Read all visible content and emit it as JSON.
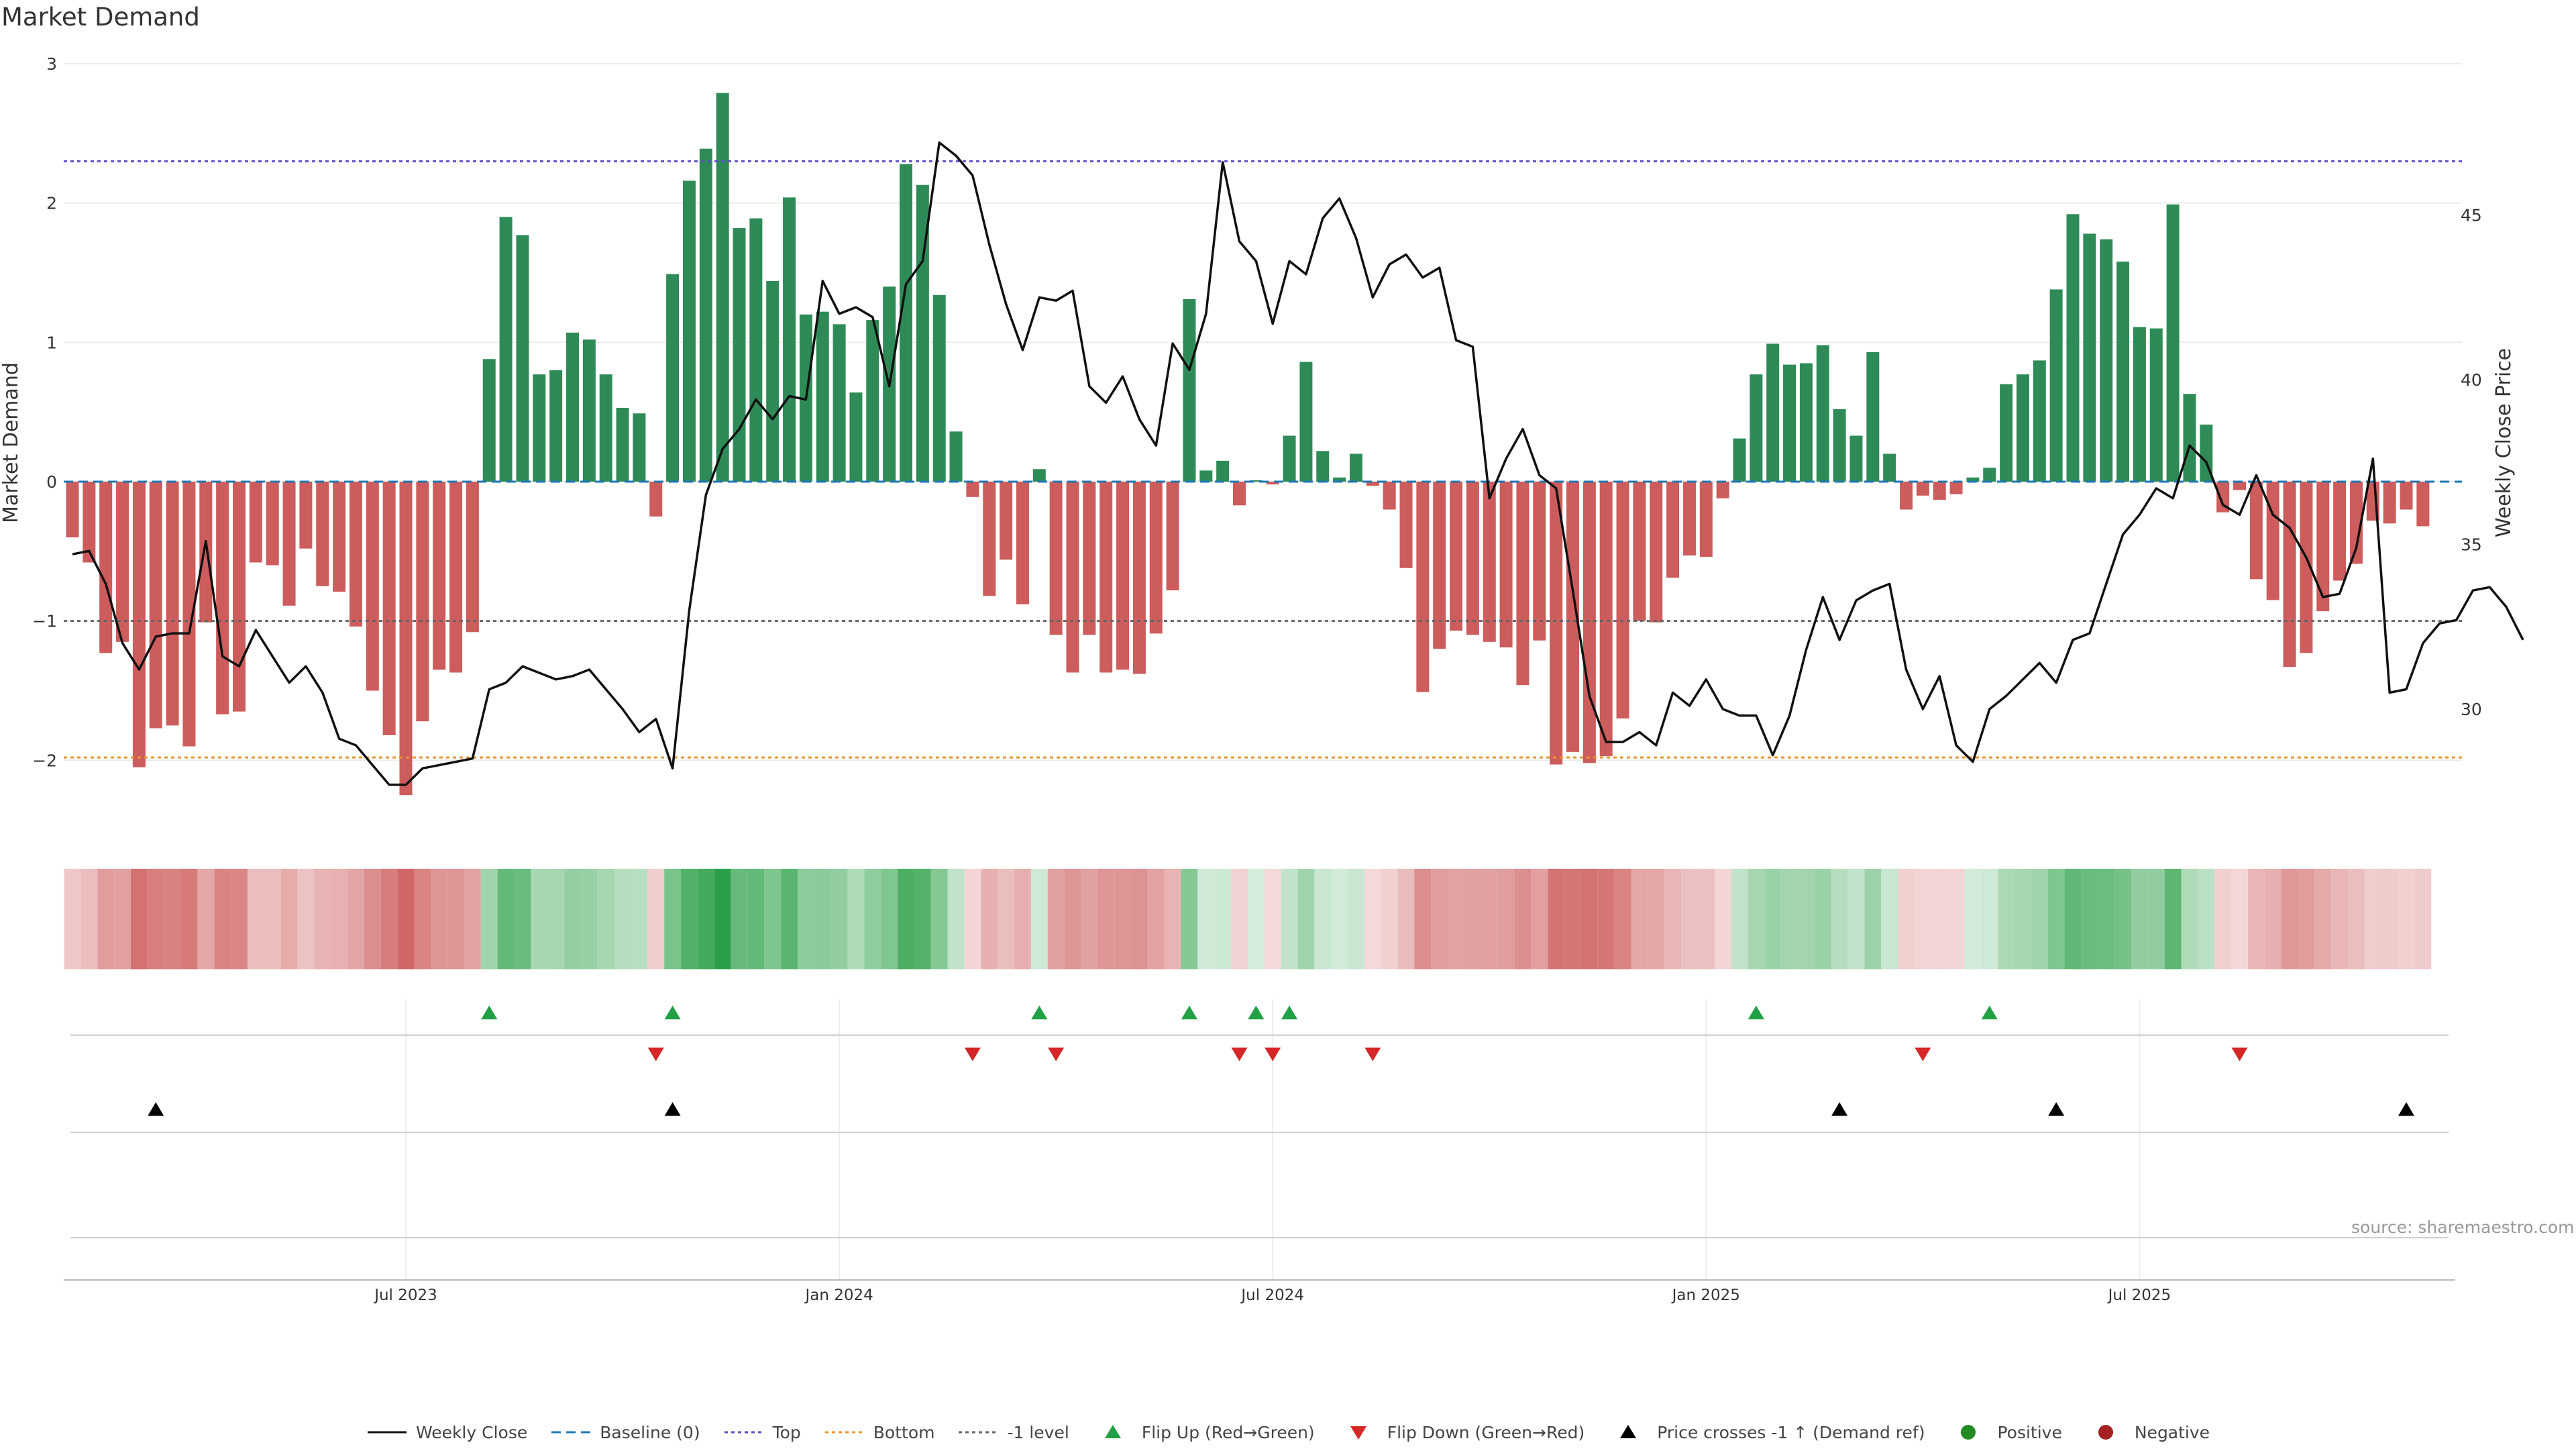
{
  "title": "Market Demand",
  "source": "source: sharemaestro.com",
  "colors": {
    "positive": "#2e8b57",
    "negative": "#cd5c5c",
    "close": "#111111",
    "baseline": "#1f77b4",
    "top": "#5b4fc4",
    "bottom": "#e8952d",
    "minus_one": "#666666",
    "flip_up": "#22a046",
    "flip_down": "#d62728",
    "cross": "#000000",
    "pos_dot": "#228b22",
    "neg_dot": "#a52121"
  },
  "legend": [
    {
      "key": "close",
      "label": "Weekly Close"
    },
    {
      "key": "baseline",
      "label": "Baseline (0)"
    },
    {
      "key": "top",
      "label": "Top"
    },
    {
      "key": "bottom",
      "label": "Bottom"
    },
    {
      "key": "minus_one",
      "label": "-1 level"
    },
    {
      "key": "flip_up",
      "label": "Flip Up (Red→Green)"
    },
    {
      "key": "flip_down",
      "label": "Flip Down (Green→Red)"
    },
    {
      "key": "cross",
      "label": "Price crosses -1 ↑ (Demand ref)"
    },
    {
      "key": "pos_dot",
      "label": "Positive"
    },
    {
      "key": "neg_dot",
      "label": "Negative"
    }
  ],
  "chart_data": {
    "type": "bar",
    "title": "Market Demand",
    "ylabel": "Market Demand",
    "y2label": "Weekly Close Price",
    "ylim": [
      -2.5,
      3.0
    ],
    "y2lim": [
      26.0,
      52.0
    ],
    "yticks": [
      "3",
      "2",
      "1",
      "0",
      "−1",
      "−2"
    ],
    "ytick_values": [
      3,
      2,
      1,
      0,
      -1,
      -2
    ],
    "y2ticks": [
      "45",
      "40",
      "35",
      "30"
    ],
    "y2tick_values": [
      45,
      40,
      35,
      30
    ],
    "top_level": 2.3,
    "bottom_level": -1.98,
    "minus_one_level": -1.0,
    "x_labels": [
      "Jul 2023",
      "Jan 2024",
      "Jul 2024",
      "Jan 2025",
      "Jul 2025"
    ],
    "x_label_weeks": [
      20,
      46,
      72,
      98,
      124
    ],
    "demand": [
      -0.4,
      -0.58,
      -1.23,
      -1.15,
      -2.05,
      -1.77,
      -1.75,
      -1.9,
      -1.01,
      -1.67,
      -1.65,
      -0.58,
      -0.6,
      -0.89,
      -0.48,
      -0.75,
      -0.79,
      -1.04,
      -1.5,
      -1.82,
      -2.25,
      -1.72,
      -1.35,
      -1.37,
      -1.08,
      0.88,
      1.9,
      1.77,
      0.77,
      0.8,
      1.07,
      1.02,
      0.77,
      0.53,
      0.49,
      -0.25,
      1.49,
      2.16,
      2.39,
      2.79,
      1.82,
      1.89,
      1.44,
      2.04,
      1.2,
      1.22,
      1.13,
      0.64,
      1.16,
      1.4,
      2.28,
      2.13,
      1.34,
      0.36,
      -0.11,
      -0.82,
      -0.56,
      -0.88,
      0.09,
      -1.1,
      -1.37,
      -1.1,
      -1.37,
      -1.35,
      -1.38,
      -1.09,
      -0.78,
      1.31,
      0.08,
      0.15,
      -0.17,
      0.01,
      -0.02,
      0.33,
      0.86,
      0.22,
      0.03,
      0.2,
      -0.03,
      -0.2,
      -0.62,
      -1.51,
      -1.2,
      -1.07,
      -1.1,
      -1.15,
      -1.19,
      -1.46,
      -1.14,
      -2.03,
      -1.94,
      -2.02,
      -1.97,
      -1.7,
      -1.0,
      -1.01,
      -0.69,
      -0.53,
      -0.54,
      -0.12,
      0.31,
      0.77,
      0.99,
      0.84,
      0.85,
      0.98,
      0.52,
      0.33,
      0.93,
      0.2,
      -0.2,
      -0.1,
      -0.13,
      -0.09,
      0.03,
      0.1,
      0.7,
      0.77,
      0.87,
      1.38,
      1.92,
      1.78,
      1.74,
      1.58,
      1.11,
      1.1,
      1.99,
      0.63,
      0.41,
      -0.22,
      -0.06,
      -0.7,
      -0.85,
      -1.33,
      -1.23,
      -0.93,
      -0.71,
      -0.59,
      -0.28,
      -0.3,
      -0.2,
      -0.32
    ],
    "close": [
      34.7,
      34.8,
      33.8,
      32.0,
      31.2,
      32.2,
      32.3,
      32.3,
      35.1,
      31.6,
      31.3,
      32.4,
      31.6,
      30.8,
      31.3,
      30.5,
      29.1,
      28.9,
      28.3,
      27.7,
      27.7,
      28.2,
      28.3,
      28.4,
      28.5,
      30.6,
      30.8,
      31.3,
      31.1,
      30.9,
      31.0,
      31.2,
      30.6,
      30.0,
      29.3,
      29.7,
      28.2,
      33.0,
      36.5,
      37.9,
      38.5,
      39.4,
      38.8,
      39.5,
      39.4,
      43.0,
      42.0,
      42.2,
      41.9,
      39.8,
      42.9,
      43.6,
      47.2,
      46.8,
      46.2,
      44.1,
      42.3,
      40.9,
      42.5,
      42.4,
      42.7,
      39.8,
      39.3,
      40.1,
      38.8,
      38.0,
      41.1,
      40.3,
      42.0,
      46.6,
      44.2,
      43.6,
      41.7,
      43.6,
      43.2,
      44.9,
      45.5,
      44.3,
      42.5,
      43.5,
      43.8,
      43.1,
      43.4,
      41.2,
      41.0,
      36.4,
      37.6,
      38.5,
      37.1,
      36.7,
      33.6,
      30.4,
      29.0,
      29.0,
      29.3,
      28.9,
      30.5,
      30.1,
      30.9,
      30.0,
      29.8,
      29.8,
      28.6,
      29.8,
      31.8,
      33.4,
      32.1,
      33.3,
      33.6,
      33.8,
      31.2,
      30.0,
      31.0,
      28.9,
      28.4,
      30.0,
      30.4,
      30.9,
      31.4,
      30.8,
      32.1,
      32.3,
      33.8,
      35.3,
      35.9,
      36.7,
      36.4,
      38.0,
      37.5,
      36.2,
      35.9,
      37.1,
      35.9,
      35.5,
      34.6,
      33.4,
      33.5,
      34.9,
      37.6,
      30.5,
      30.6,
      32.0,
      32.6,
      32.7,
      33.6,
      33.7,
      33.1,
      32.1
    ],
    "flip_up_weeks": [
      25,
      36,
      58,
      67,
      71,
      73,
      101,
      115
    ],
    "flip_down_weeks": [
      35,
      54,
      59,
      70,
      72,
      78,
      111,
      130
    ],
    "cross_up_weeks": [
      5,
      36,
      106,
      119,
      140
    ]
  }
}
